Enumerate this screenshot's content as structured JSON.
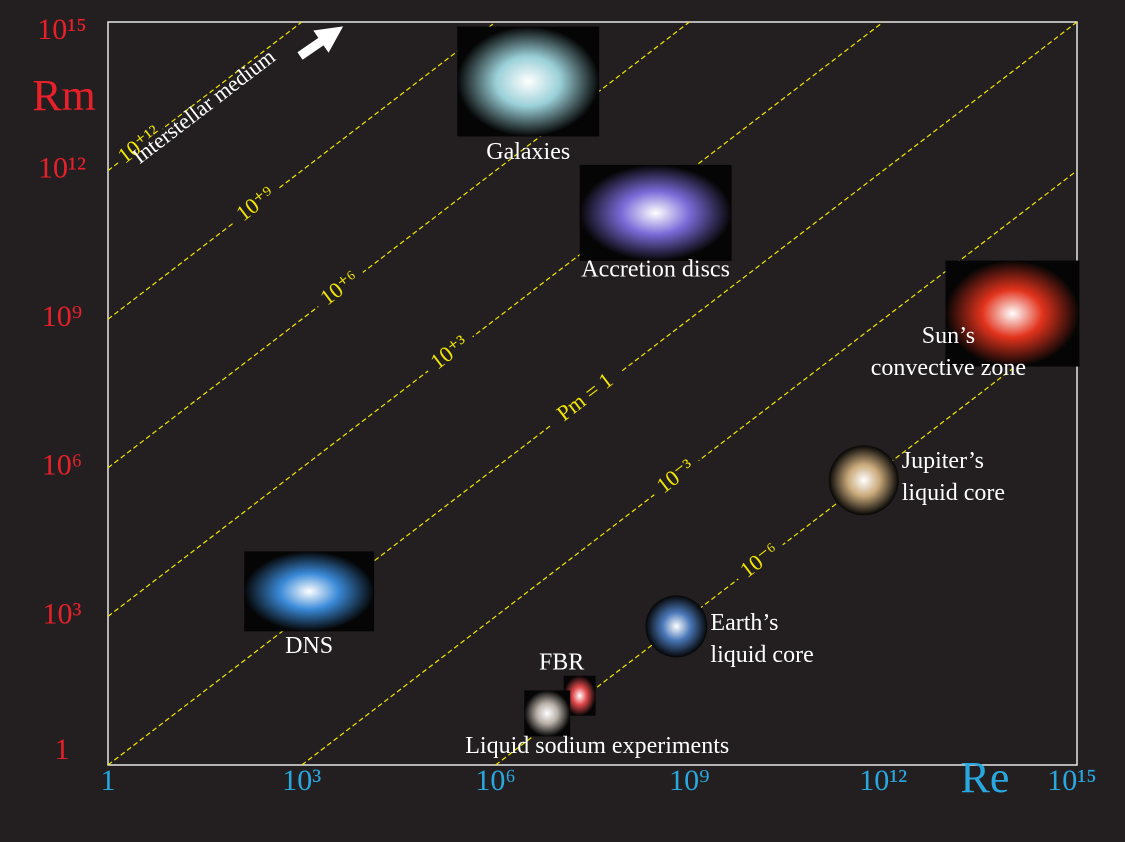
{
  "chart_data": {
    "type": "scatter",
    "x_label": "Re",
    "y_label": "Rm",
    "log_x": true,
    "log_y": true,
    "xlim": [
      1,
      1000000000000000.0
    ],
    "ylim": [
      1,
      1000000000000000.0
    ],
    "xticks": [
      1,
      {
        "value": 1000,
        "label": "10³"
      },
      {
        "value": 1000000,
        "label": "10⁶"
      },
      {
        "value": 1000000000,
        "label": "10⁹"
      },
      {
        "value": 1000000000000,
        "label": "10¹²"
      },
      {
        "value": 1000000000000000.0,
        "label": "10¹⁵"
      }
    ],
    "yticks": [
      1,
      {
        "value": 1000,
        "label": "10³"
      },
      {
        "value": 1000000,
        "label": "10⁶"
      },
      {
        "value": 1000000000,
        "label": "10⁹"
      },
      {
        "value": 1000000000000,
        "label": "10¹²"
      },
      {
        "value": 1000000000000000.0,
        "label": "10¹⁵"
      }
    ],
    "x_color": "#29a8e0",
    "y_color": "#e8202a",
    "line_color": "#f2e600",
    "pm_lines": [
      {
        "value": 1000000000000,
        "label": "10⁺¹²"
      },
      {
        "value": 1000000000,
        "label": "10⁺⁹"
      },
      {
        "value": 1000000,
        "label": "10⁺⁶"
      },
      {
        "value": 1000,
        "label": "10⁺³"
      },
      {
        "value": 1,
        "label": "Pm = 1"
      },
      {
        "value": 0.001,
        "label": "10⁻³"
      },
      {
        "value": 1e-06,
        "label": "10⁻⁶"
      }
    ],
    "objects": [
      {
        "name": [
          "Galaxies"
        ],
        "re": 3200000,
        "rm": 63000000000000.0,
        "color": "#9ad0d8"
      },
      {
        "name": [
          "Accretion discs"
        ],
        "re": 300000000,
        "rm": 140000000000.0,
        "color": "#7a6ad8"
      },
      {
        "name": [
          "Sun’s",
          "convective zone"
        ],
        "re": 100000000000000.0,
        "rm": 1300000000.0,
        "color": "#e2331c"
      },
      {
        "name": [
          "Jupiter’s",
          "liquid core"
        ],
        "re": 500000000000.0,
        "rm": 560000,
        "color": "#c9a97a"
      },
      {
        "name": [
          "Earth’s",
          "liquid core"
        ],
        "re": 630000000,
        "rm": 630,
        "color": "#4a78b8"
      },
      {
        "name": [
          "FBR"
        ],
        "re": 20000000,
        "rm": 25,
        "color": "#e0484a"
      },
      {
        "name": [
          "Liquid sodium experiments"
        ],
        "re": 6300000,
        "rm": 11,
        "color": "#b8b0a8"
      },
      {
        "name": [
          "DNS"
        ],
        "re": 1300,
        "rm": 3200,
        "color": "#3a8ad8"
      }
    ],
    "annotation": "Interstellar medium"
  }
}
